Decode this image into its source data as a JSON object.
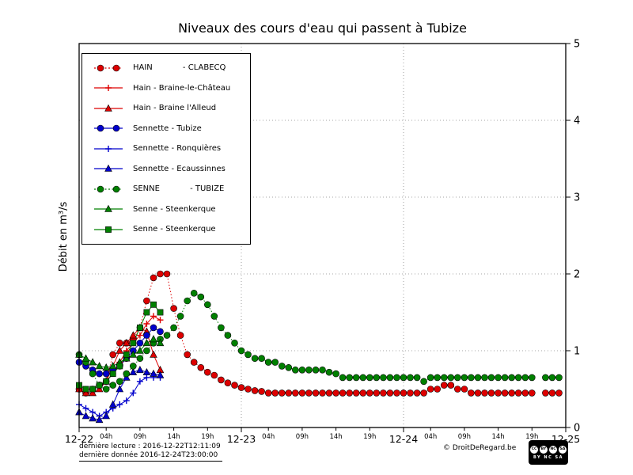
{
  "title": "Niveaux des cours d'eau qui passent à Tubize",
  "ylabel": "Débit en m³/s",
  "footer": {
    "last_reading": "dernière lecture : 2016-12-22T12:11:09",
    "last_data": "dernière donnée  2016-12-24T23:00:00",
    "copyright": "© DroitDeRegard.be",
    "license": "BY NC SA",
    "license_icons": [
      "cc",
      "by",
      "nc",
      "sa"
    ]
  },
  "chart_data": {
    "type": "line",
    "title": "Niveaux des cours d'eau qui passent à Tubize",
    "xlabel": "",
    "ylabel": "Débit en m³/s",
    "x_unit": "hours since 2016-12-22 00:00",
    "xlim": [
      0,
      72
    ],
    "ylim": [
      0,
      5
    ],
    "grid": true,
    "grid_y": [
      1,
      2,
      3,
      4
    ],
    "grid_x": [
      24,
      48
    ],
    "yticks": [
      0,
      1,
      2,
      3,
      4,
      5
    ],
    "xticks_major": [
      {
        "t": 0,
        "label": "12-22"
      },
      {
        "t": 24,
        "label": "12-23"
      },
      {
        "t": 48,
        "label": "12-24"
      },
      {
        "t": 72,
        "label": "12-25"
      }
    ],
    "xticks_minor": [
      {
        "t": 4,
        "label": "04h"
      },
      {
        "t": 9,
        "label": "09h"
      },
      {
        "t": 14,
        "label": "14h"
      },
      {
        "t": 19,
        "label": "19h"
      },
      {
        "t": 28,
        "label": "04h"
      },
      {
        "t": 33,
        "label": "09h"
      },
      {
        "t": 38,
        "label": "14h"
      },
      {
        "t": 43,
        "label": "19h"
      },
      {
        "t": 52,
        "label": "04h"
      },
      {
        "t": 57,
        "label": "09h"
      },
      {
        "t": 62,
        "label": "14h"
      },
      {
        "t": 67,
        "label": "19h"
      }
    ],
    "legend_position": "upper left",
    "series": [
      {
        "name": "HAIN            - CLABECQ",
        "color": "#dd0000",
        "marker": "circle",
        "line": "dotted",
        "points": [
          [
            0,
            0.5
          ],
          [
            1,
            0.45
          ],
          [
            2,
            0.5
          ],
          [
            3,
            0.55
          ],
          [
            4,
            0.6
          ],
          [
            5,
            0.95
          ],
          [
            6,
            1.1
          ],
          [
            7,
            1.1
          ],
          [
            8,
            1.15
          ],
          [
            9,
            1.3
          ],
          [
            10,
            1.65
          ],
          [
            11,
            1.95
          ],
          [
            12,
            2.0
          ],
          [
            13,
            2.0
          ],
          [
            14,
            1.55
          ],
          [
            15,
            1.2
          ],
          [
            16,
            0.95
          ],
          [
            17,
            0.85
          ],
          [
            18,
            0.78
          ],
          [
            19,
            0.72
          ],
          [
            20,
            0.68
          ],
          [
            21,
            0.62
          ],
          [
            22,
            0.58
          ],
          [
            23,
            0.55
          ],
          [
            24,
            0.52
          ],
          [
            25,
            0.5
          ],
          [
            26,
            0.48
          ],
          [
            27,
            0.47
          ],
          [
            28,
            0.45
          ],
          [
            29,
            0.45
          ],
          [
            30,
            0.45
          ],
          [
            31,
            0.45
          ],
          [
            32,
            0.45
          ],
          [
            33,
            0.45
          ],
          [
            34,
            0.45
          ],
          [
            35,
            0.45
          ],
          [
            36,
            0.45
          ],
          [
            37,
            0.45
          ],
          [
            38,
            0.45
          ],
          [
            39,
            0.45
          ],
          [
            40,
            0.45
          ],
          [
            41,
            0.45
          ],
          [
            42,
            0.45
          ],
          [
            43,
            0.45
          ],
          [
            44,
            0.45
          ],
          [
            45,
            0.45
          ],
          [
            46,
            0.45
          ],
          [
            47,
            0.45
          ],
          [
            48,
            0.45
          ],
          [
            49,
            0.45
          ],
          [
            50,
            0.45
          ],
          [
            51,
            0.45
          ],
          [
            52,
            0.5
          ],
          [
            53,
            0.5
          ],
          [
            54,
            0.55
          ],
          [
            55,
            0.55
          ],
          [
            56,
            0.5
          ],
          [
            57,
            0.5
          ],
          [
            58,
            0.45
          ],
          [
            59,
            0.45
          ],
          [
            60,
            0.45
          ],
          [
            61,
            0.45
          ],
          [
            62,
            0.45
          ],
          [
            63,
            0.45
          ],
          [
            64,
            0.45
          ],
          [
            65,
            0.45
          ],
          [
            66,
            0.45
          ],
          [
            67,
            0.45
          ],
          [
            69,
            0.45
          ],
          [
            70,
            0.45
          ],
          [
            71,
            0.45
          ]
        ]
      },
      {
        "name": "Hain - Braine-le-Château",
        "color": "#dd0000",
        "marker": "plus",
        "line": "solid",
        "points": [
          [
            0,
            0.55
          ],
          [
            1,
            0.5
          ],
          [
            2,
            0.5
          ],
          [
            3,
            0.55
          ],
          [
            4,
            0.6
          ],
          [
            5,
            0.7
          ],
          [
            6,
            0.85
          ],
          [
            7,
            1.0
          ],
          [
            8,
            1.1
          ],
          [
            9,
            1.2
          ],
          [
            10,
            1.35
          ],
          [
            11,
            1.45
          ],
          [
            12,
            1.4
          ]
        ]
      },
      {
        "name": "Hain - Braine l'Alleud",
        "color": "#dd0000",
        "marker": "triangle",
        "line": "solid",
        "points": [
          [
            0,
            0.5
          ],
          [
            1,
            0.45
          ],
          [
            2,
            0.45
          ],
          [
            3,
            0.5
          ],
          [
            4,
            0.6
          ],
          [
            5,
            0.8
          ],
          [
            6,
            1.0
          ],
          [
            7,
            1.1
          ],
          [
            8,
            1.2
          ],
          [
            9,
            1.3
          ],
          [
            10,
            1.25
          ],
          [
            11,
            0.95
          ],
          [
            12,
            0.75
          ]
        ]
      },
      {
        "name": "Sennette - Tubize",
        "color": "#0000cc",
        "marker": "circle",
        "line": "solid",
        "points": [
          [
            0,
            0.85
          ],
          [
            1,
            0.8
          ],
          [
            2,
            0.75
          ],
          [
            3,
            0.7
          ],
          [
            4,
            0.7
          ],
          [
            5,
            0.75
          ],
          [
            6,
            0.8
          ],
          [
            7,
            0.9
          ],
          [
            8,
            1.0
          ],
          [
            9,
            1.1
          ],
          [
            10,
            1.2
          ],
          [
            11,
            1.3
          ],
          [
            12,
            1.25
          ]
        ]
      },
      {
        "name": "Sennette - Ronquières",
        "color": "#0000cc",
        "marker": "plus",
        "line": "solid",
        "points": [
          [
            0,
            0.3
          ],
          [
            1,
            0.25
          ],
          [
            2,
            0.2
          ],
          [
            3,
            0.15
          ],
          [
            4,
            0.2
          ],
          [
            5,
            0.25
          ],
          [
            6,
            0.3
          ],
          [
            7,
            0.35
          ],
          [
            8,
            0.45
          ],
          [
            9,
            0.6
          ],
          [
            10,
            0.65
          ],
          [
            11,
            0.65
          ],
          [
            12,
            0.65
          ]
        ]
      },
      {
        "name": "Sennette - Ecaussinnes",
        "color": "#0000cc",
        "marker": "triangle",
        "line": "solid",
        "points": [
          [
            0,
            0.2
          ],
          [
            1,
            0.15
          ],
          [
            2,
            0.12
          ],
          [
            3,
            0.1
          ],
          [
            4,
            0.15
          ],
          [
            5,
            0.3
          ],
          [
            6,
            0.5
          ],
          [
            7,
            0.65
          ],
          [
            8,
            0.72
          ],
          [
            9,
            0.75
          ],
          [
            10,
            0.72
          ],
          [
            11,
            0.7
          ],
          [
            12,
            0.68
          ]
        ]
      },
      {
        "name": "SENNE            - TUBIZE",
        "color": "#008000",
        "marker": "circle",
        "line": "dotted",
        "points": [
          [
            0,
            0.95
          ],
          [
            1,
            0.85
          ],
          [
            2,
            0.7
          ],
          [
            3,
            0.55
          ],
          [
            4,
            0.5
          ],
          [
            5,
            0.55
          ],
          [
            6,
            0.6
          ],
          [
            7,
            0.7
          ],
          [
            8,
            0.8
          ],
          [
            9,
            0.9
          ],
          [
            10,
            1.0
          ],
          [
            11,
            1.1
          ],
          [
            12,
            1.15
          ],
          [
            13,
            1.2
          ],
          [
            14,
            1.3
          ],
          [
            15,
            1.45
          ],
          [
            16,
            1.65
          ],
          [
            17,
            1.75
          ],
          [
            18,
            1.7
          ],
          [
            19,
            1.6
          ],
          [
            20,
            1.45
          ],
          [
            21,
            1.3
          ],
          [
            22,
            1.2
          ],
          [
            23,
            1.1
          ],
          [
            24,
            1.0
          ],
          [
            25,
            0.95
          ],
          [
            26,
            0.9
          ],
          [
            27,
            0.9
          ],
          [
            28,
            0.85
          ],
          [
            29,
            0.85
          ],
          [
            30,
            0.8
          ],
          [
            31,
            0.78
          ],
          [
            32,
            0.75
          ],
          [
            33,
            0.75
          ],
          [
            34,
            0.75
          ],
          [
            35,
            0.75
          ],
          [
            36,
            0.75
          ],
          [
            37,
            0.72
          ],
          [
            38,
            0.7
          ],
          [
            39,
            0.65
          ],
          [
            40,
            0.65
          ],
          [
            41,
            0.65
          ],
          [
            42,
            0.65
          ],
          [
            43,
            0.65
          ],
          [
            44,
            0.65
          ],
          [
            45,
            0.65
          ],
          [
            46,
            0.65
          ],
          [
            47,
            0.65
          ],
          [
            48,
            0.65
          ],
          [
            49,
            0.65
          ],
          [
            50,
            0.65
          ],
          [
            51,
            0.6
          ],
          [
            52,
            0.65
          ],
          [
            53,
            0.65
          ],
          [
            54,
            0.65
          ],
          [
            55,
            0.65
          ],
          [
            56,
            0.65
          ],
          [
            57,
            0.65
          ],
          [
            58,
            0.65
          ],
          [
            59,
            0.65
          ],
          [
            60,
            0.65
          ],
          [
            61,
            0.65
          ],
          [
            62,
            0.65
          ],
          [
            63,
            0.65
          ],
          [
            64,
            0.65
          ],
          [
            65,
            0.65
          ],
          [
            66,
            0.65
          ],
          [
            67,
            0.65
          ],
          [
            69,
            0.65
          ],
          [
            70,
            0.65
          ],
          [
            71,
            0.65
          ]
        ]
      },
      {
        "name": "Senne - Steenkerque",
        "color": "#008000",
        "marker": "triangle",
        "line": "solid",
        "points": [
          [
            0,
            0.95
          ],
          [
            1,
            0.9
          ],
          [
            2,
            0.85
          ],
          [
            3,
            0.8
          ],
          [
            4,
            0.78
          ],
          [
            5,
            0.8
          ],
          [
            6,
            0.85
          ],
          [
            7,
            0.9
          ],
          [
            8,
            0.95
          ],
          [
            9,
            1.0
          ],
          [
            10,
            1.1
          ],
          [
            11,
            1.15
          ],
          [
            12,
            1.1
          ]
        ]
      },
      {
        "name": "Senne - Steenkerque",
        "color": "#008000",
        "marker": "square",
        "line": "solid",
        "points": [
          [
            0,
            0.55
          ],
          [
            1,
            0.5
          ],
          [
            2,
            0.5
          ],
          [
            3,
            0.55
          ],
          [
            4,
            0.6
          ],
          [
            5,
            0.7
          ],
          [
            6,
            0.8
          ],
          [
            7,
            0.95
          ],
          [
            8,
            1.1
          ],
          [
            9,
            1.3
          ],
          [
            10,
            1.5
          ],
          [
            11,
            1.6
          ],
          [
            12,
            1.5
          ]
        ]
      }
    ]
  }
}
